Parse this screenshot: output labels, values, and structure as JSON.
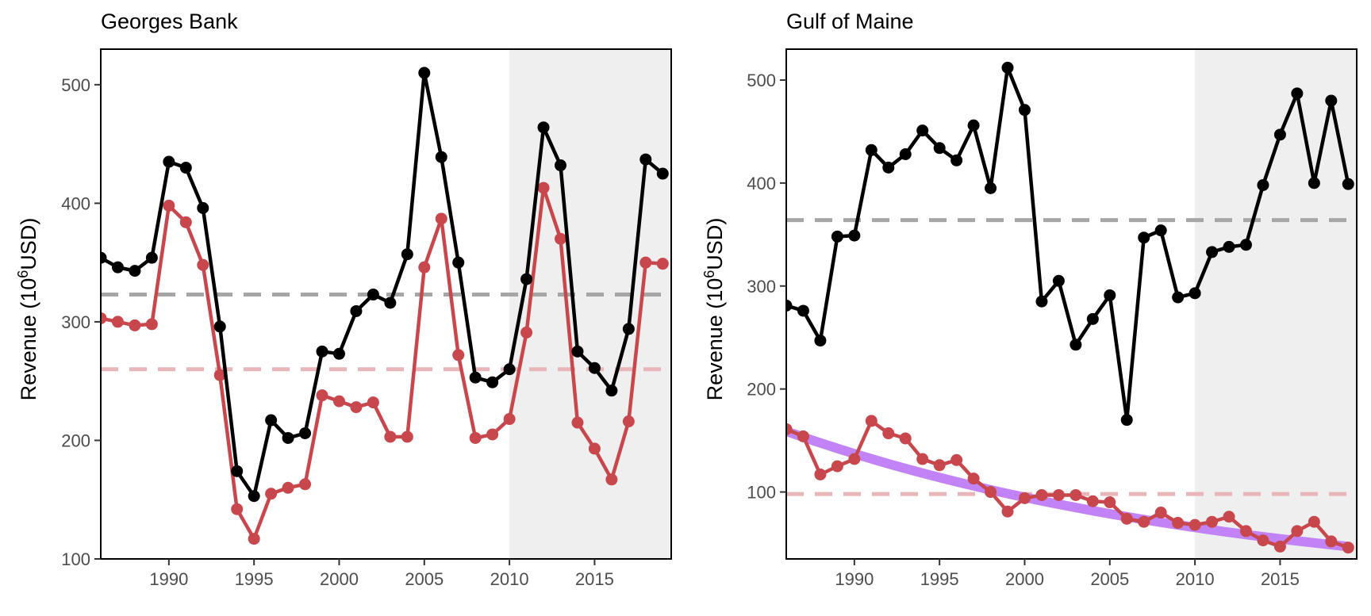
{
  "figure": {
    "ylabel_main": "Revenue (10",
    "ylabel_sup": "6",
    "ylabel_tail": "USD)"
  },
  "colors": {
    "black_series": "#000000",
    "red_series": "#c8474d",
    "black_mean": "#a6a6a6",
    "red_mean": "#e8b6b8",
    "trend": "#bf7cf5",
    "shade": "#efefef"
  },
  "chart_data": [
    {
      "type": "line",
      "title": "Georges Bank",
      "ylabel": "Revenue (10^6USD)",
      "xlim": [
        1986,
        2019.5
      ],
      "ylim": [
        100,
        530
      ],
      "xticks": [
        1990,
        1995,
        2000,
        2005,
        2010,
        2015
      ],
      "yticks": [
        100,
        200,
        300,
        400,
        500
      ],
      "shaded_x_range": [
        2010,
        2019.5
      ],
      "grid": false,
      "x": [
        1986,
        1987,
        1988,
        1989,
        1990,
        1991,
        1992,
        1993,
        1994,
        1995,
        1996,
        1997,
        1998,
        1999,
        2000,
        2001,
        2002,
        2003,
        2004,
        2005,
        2006,
        2007,
        2008,
        2009,
        2010,
        2011,
        2012,
        2013,
        2014,
        2015,
        2016,
        2017,
        2018,
        2019
      ],
      "series": [
        {
          "color": "black",
          "values": [
            354,
            346,
            343,
            354,
            435,
            430,
            396,
            296,
            174,
            153,
            217,
            202,
            206,
            275,
            273,
            309,
            323,
            316,
            357,
            510,
            439,
            350,
            253,
            249,
            260,
            336,
            464,
            432,
            275,
            261,
            242,
            294,
            437,
            425
          ],
          "mean": 323
        },
        {
          "color": "red",
          "values": [
            303,
            300,
            297,
            298,
            398,
            384,
            348,
            255,
            142,
            117,
            155,
            160,
            163,
            238,
            233,
            228,
            232,
            203,
            203,
            346,
            387,
            272,
            202,
            205,
            218,
            291,
            413,
            370,
            215,
            193,
            167,
            216,
            350,
            349
          ],
          "mean": 260
        }
      ]
    },
    {
      "type": "line",
      "title": "Gulf of Maine",
      "ylabel": "Revenue (10^6USD)",
      "xlim": [
        1986,
        2019.5
      ],
      "ylim": [
        35,
        530
      ],
      "xticks": [
        1990,
        1995,
        2000,
        2005,
        2010,
        2015
      ],
      "yticks": [
        100,
        200,
        300,
        400,
        500
      ],
      "shaded_x_range": [
        2010,
        2019.5
      ],
      "grid": false,
      "x": [
        1986,
        1987,
        1988,
        1989,
        1990,
        1991,
        1992,
        1993,
        1994,
        1995,
        1996,
        1997,
        1998,
        1999,
        2000,
        2001,
        2002,
        2003,
        2004,
        2005,
        2006,
        2007,
        2008,
        2009,
        2010,
        2011,
        2012,
        2013,
        2014,
        2015,
        2016,
        2017,
        2018,
        2019
      ],
      "series": [
        {
          "color": "black",
          "values": [
            281,
            276,
            247,
            348,
            349,
            432,
            415,
            428,
            451,
            434,
            422,
            456,
            395,
            512,
            471,
            285,
            305,
            243,
            268,
            291,
            170,
            347,
            354,
            289,
            293,
            333,
            338,
            340,
            398,
            447,
            487,
            400,
            480,
            399
          ],
          "mean": 364
        },
        {
          "color": "red",
          "values": [
            161,
            154,
            117,
            125,
            132,
            169,
            157,
            152,
            132,
            126,
            131,
            113,
            100,
            81,
            94,
            97,
            97,
            97,
            91,
            90,
            74,
            71,
            80,
            70,
            68,
            71,
            76,
            62,
            53,
            47,
            62,
            71,
            52,
            46
          ],
          "mean": 98
        }
      ],
      "trend": {
        "color": "purple",
        "x": [
          1986,
          2019
        ],
        "values": [
          159,
          47
        ]
      }
    }
  ]
}
